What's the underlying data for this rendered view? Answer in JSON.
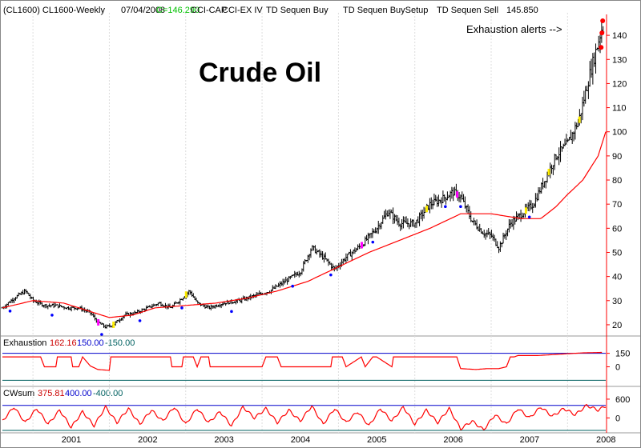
{
  "header": {
    "symbol": "(CL1600) CL1600-Weekly",
    "date": "07/04/2008",
    "close": "C=146.290",
    "close_color": "#00c000",
    "studies": [
      "CCI-CAP",
      "CCI-EX IV",
      "TD Sequen Buy",
      "TD Sequen BuySetup",
      "TD Sequen Sell"
    ],
    "last_value": "145.850"
  },
  "annotations": {
    "title": "Crude Oil",
    "alert": "Exhaustion alerts -->"
  },
  "colors": {
    "bars": "#000000",
    "moving_average": "#ff0000",
    "indicator": "#ff0000",
    "upper_line": "#0000cc",
    "lower_line": "#006060",
    "axis": "#ff0000",
    "buy_marker": "#0000ff",
    "sell_marker": "#ff0000",
    "setup_yellow": "#ffee00",
    "setup_magenta": "#ff00ff"
  },
  "panels": {
    "exhaustion": {
      "name": "Exhaustion",
      "value": "162.16",
      "upper": "150.00",
      "lower": "-150.00",
      "ticks": [
        "150",
        "0"
      ]
    },
    "cwsum": {
      "name": "CWsum",
      "value": "375.81",
      "upper": "400.00",
      "lower": "-400.00",
      "ticks": [
        "600",
        "0"
      ]
    }
  },
  "chart_data": [
    {
      "type": "line",
      "x_ticks": [
        "2001",
        "2002",
        "2003",
        "2004",
        "2005",
        "2006",
        "2007",
        "2008"
      ],
      "y_ticks": [
        20,
        30,
        40,
        50,
        60,
        70,
        80,
        90,
        100,
        110,
        120,
        130,
        140
      ],
      "ylim": [
        16,
        148
      ],
      "x_unit": "year",
      "xlim": [
        2000.6,
        2008.5
      ],
      "series": [
        {
          "kind": "weekly-price-approx",
          "x": [
            2000.6,
            2000.75,
            2000.9,
            2001.0,
            2001.15,
            2001.3,
            2001.45,
            2001.6,
            2001.75,
            2001.85,
            2001.95,
            2002.05,
            2002.2,
            2002.35,
            2002.5,
            2002.65,
            2002.8,
            2002.95,
            2003.05,
            2003.15,
            2003.3,
            2003.5,
            2003.7,
            2003.9,
            2004.1,
            2004.3,
            2004.5,
            2004.65,
            2004.8,
            2004.95,
            2005.1,
            2005.3,
            2005.5,
            2005.65,
            2005.8,
            2006.0,
            2006.2,
            2006.35,
            2006.5,
            2006.6,
            2006.75,
            2006.9,
            2007.0,
            2007.1,
            2007.25,
            2007.4,
            2007.55,
            2007.7,
            2007.85,
            2008.0,
            2008.15,
            2008.3,
            2008.45
          ],
          "values": [
            27,
            31,
            34,
            30,
            28,
            28,
            27,
            27,
            25,
            21,
            19,
            20,
            24,
            25,
            27,
            29,
            27,
            31,
            34,
            29,
            27,
            29,
            30,
            32,
            34,
            38,
            42,
            52,
            48,
            43,
            48,
            53,
            60,
            67,
            62,
            62,
            70,
            72,
            75,
            73,
            63,
            58,
            57,
            52,
            62,
            66,
            70,
            80,
            90,
            95,
            105,
            125,
            143
          ]
        },
        {
          "kind": "moving-average-approx",
          "x": [
            2000.6,
            2001.0,
            2001.4,
            2001.8,
            2002.0,
            2002.3,
            2002.6,
            2003.0,
            2003.4,
            2003.8,
            2004.2,
            2004.6,
            2005.0,
            2005.4,
            2005.8,
            2006.2,
            2006.6,
            2007.0,
            2007.4,
            2007.65,
            2007.85,
            2008.0,
            2008.2,
            2008.4,
            2008.5
          ],
          "values": [
            27,
            30,
            29,
            25,
            23,
            24,
            27,
            28,
            29,
            31,
            34,
            38,
            44,
            50,
            55,
            60,
            66,
            66,
            64,
            64,
            69,
            74,
            80,
            90,
            100
          ]
        }
      ],
      "markers_exhaustion_alerts": [
        135,
        141,
        146
      ]
    },
    {
      "type": "line",
      "title": "Exhaustion",
      "ylim": [
        -200,
        200
      ],
      "upper_line": 150,
      "lower_line": -150,
      "series": [
        {
          "name": "Exhaustion",
          "x": [
            2000.6,
            2001.1,
            2001.15,
            2001.3,
            2001.32,
            2001.5,
            2001.52,
            2001.6,
            2001.65,
            2001.75,
            2001.85,
            2002.0,
            2002.02,
            2002.8,
            2002.82,
            2002.95,
            2002.97,
            2003.1,
            2003.15,
            2003.2,
            2003.3,
            2003.32,
            2004.0,
            2004.05,
            2004.2,
            2004.25,
            2004.9,
            2004.92,
            2005.05,
            2005.1,
            2005.3,
            2005.35,
            2005.45,
            2005.5,
            2005.7,
            2005.72,
            2006.55,
            2006.6,
            2006.8,
            2006.95,
            2007.1,
            2007.2,
            2007.25,
            2007.3,
            2007.35,
            2007.6,
            2008.2,
            2008.45
          ],
          "values": [
            110,
            110,
            0,
            0,
            110,
            110,
            0,
            0,
            110,
            10,
            -30,
            -40,
            110,
            110,
            0,
            0,
            110,
            110,
            0,
            110,
            110,
            0,
            0,
            110,
            110,
            0,
            0,
            110,
            110,
            0,
            110,
            0,
            110,
            110,
            0,
            110,
            110,
            -20,
            -30,
            -20,
            -20,
            0,
            110,
            110,
            125,
            125,
            155,
            160
          ]
        }
      ]
    },
    {
      "type": "line",
      "title": "CWsum",
      "ylim": [
        -450,
        650
      ],
      "upper_line": 400,
      "lower_line": -400,
      "series": [
        {
          "name": "CWsum",
          "x": [
            2000.6,
            2000.75,
            2000.9,
            2001.05,
            2001.2,
            2001.35,
            2001.5,
            2001.65,
            2001.8,
            2001.95,
            2002.1,
            2002.25,
            2002.4,
            2002.55,
            2002.7,
            2002.85,
            2003.0,
            2003.15,
            2003.3,
            2003.45,
            2003.6,
            2003.75,
            2003.9,
            2004.05,
            2004.2,
            2004.35,
            2004.5,
            2004.65,
            2004.8,
            2004.95,
            2005.1,
            2005.25,
            2005.4,
            2005.55,
            2005.7,
            2005.85,
            2006.0,
            2006.15,
            2006.3,
            2006.45,
            2006.6,
            2006.75,
            2006.9,
            2007.05,
            2007.2,
            2007.35,
            2007.5,
            2007.65,
            2007.8,
            2007.95,
            2008.1,
            2008.25,
            2008.4,
            2008.5
          ],
          "values": [
            -100,
            350,
            -150,
            300,
            -200,
            250,
            -300,
            200,
            -250,
            350,
            -150,
            300,
            -200,
            250,
            -100,
            350,
            -200,
            300,
            -150,
            200,
            -250,
            350,
            0,
            300,
            -150,
            250,
            -100,
            380,
            -200,
            300,
            -150,
            200,
            -250,
            300,
            -100,
            350,
            -200,
            250,
            -150,
            300,
            -350,
            -100,
            -380,
            100,
            -200,
            300,
            0,
            350,
            50,
            300,
            100,
            400,
            250,
            380
          ]
        }
      ]
    }
  ]
}
